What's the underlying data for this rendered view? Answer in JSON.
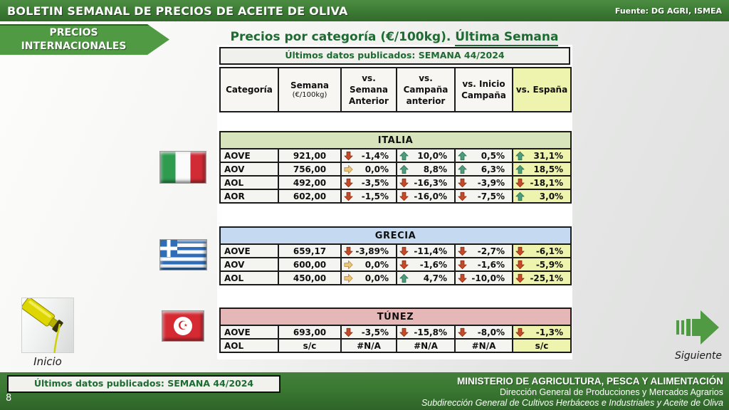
{
  "header": {
    "title": "BOLETIN SEMANAL DE PRECIOS DE ACEITE DE OLIVA",
    "source": "Fuente: DG AGRI, ISMEA"
  },
  "nav": {
    "section_line1": "PRECIOS",
    "section_line2": "INTERNACIONALES",
    "inicio_label": "Inicio",
    "siguiente_label": "Siguiente",
    "page_number": "8"
  },
  "main": {
    "title_plain": "Precios por categoría (€/100kg). ",
    "title_underlined": "Última Semana",
    "published_banner": "Últimos datos publicados: SEMANA 44/2024",
    "columns": {
      "categoria": "Categoría",
      "semana": "Semana",
      "semana_sub": "(€/100kg)",
      "vs_semana": "vs.\nSemana\nAnterior",
      "vs_campana": "vs.\nCampaña\nanterior",
      "vs_inicio": "vs. Inicio\nCampaña",
      "vs_espana": "vs. España"
    }
  },
  "tables": [
    {
      "country": "ITALIA",
      "header_bg": "#d7e4bc",
      "rows": [
        {
          "category": "AOVE",
          "week": "921,00",
          "values": [
            {
              "arrow": "down",
              "text": "-1,4%"
            },
            {
              "arrow": "up",
              "text": "10,0%"
            },
            {
              "arrow": "up",
              "text": "0,5%"
            },
            {
              "arrow": "up",
              "text": "31,1%"
            }
          ]
        },
        {
          "category": "AOV",
          "week": "756,00",
          "values": [
            {
              "arrow": "right",
              "text": "0,0%"
            },
            {
              "arrow": "up",
              "text": "8,8%"
            },
            {
              "arrow": "up",
              "text": "6,3%"
            },
            {
              "arrow": "up",
              "text": "18,5%"
            }
          ]
        },
        {
          "category": "AOL",
          "week": "492,00",
          "values": [
            {
              "arrow": "down",
              "text": "-3,5%"
            },
            {
              "arrow": "down",
              "text": "-16,3%"
            },
            {
              "arrow": "down",
              "text": "-3,9%"
            },
            {
              "arrow": "down",
              "text": "-18,1%"
            }
          ]
        },
        {
          "category": "AOR",
          "week": "602,00",
          "values": [
            {
              "arrow": "down",
              "text": "-1,5%"
            },
            {
              "arrow": "down",
              "text": "-16,0%"
            },
            {
              "arrow": "down",
              "text": "-7,5%"
            },
            {
              "arrow": "up",
              "text": "3,0%"
            }
          ]
        }
      ]
    },
    {
      "country": "GRECIA",
      "header_bg": "#c5d9f1",
      "rows": [
        {
          "category": "AOVE",
          "week": "659,17",
          "values": [
            {
              "arrow": "down",
              "text": "-3,89%"
            },
            {
              "arrow": "down",
              "text": "-11,4%"
            },
            {
              "arrow": "down",
              "text": "-2,7%"
            },
            {
              "arrow": "down",
              "text": "-6,1%"
            }
          ]
        },
        {
          "category": "AOV",
          "week": "600,00",
          "values": [
            {
              "arrow": "right",
              "text": "0,0%"
            },
            {
              "arrow": "down",
              "text": "-1,6%"
            },
            {
              "arrow": "down",
              "text": "-1,6%"
            },
            {
              "arrow": "down",
              "text": "-5,9%"
            }
          ]
        },
        {
          "category": "AOL",
          "week": "450,00",
          "values": [
            {
              "arrow": "right",
              "text": "0,0%"
            },
            {
              "arrow": "up",
              "text": "4,7%"
            },
            {
              "arrow": "down",
              "text": "-10,0%"
            },
            {
              "arrow": "down",
              "text": "-25,1%"
            }
          ]
        }
      ]
    },
    {
      "country": "TÚNEZ",
      "header_bg": "#e5b8b7",
      "rows": [
        {
          "category": "AOVE",
          "week": "693,00",
          "values": [
            {
              "arrow": "down",
              "text": "-3,5%"
            },
            {
              "arrow": "down",
              "text": "-15,8%"
            },
            {
              "arrow": "down",
              "text": "-8,0%"
            },
            {
              "arrow": "down",
              "text": "-1,3%"
            }
          ]
        },
        {
          "category": "AOL",
          "week": "s/c",
          "values": [
            {
              "arrow": null,
              "text": "#N/A"
            },
            {
              "arrow": null,
              "text": "#N/A"
            },
            {
              "arrow": null,
              "text": "#N/A"
            },
            {
              "arrow": null,
              "text": "s/c"
            }
          ]
        }
      ]
    }
  ],
  "footer": {
    "ministry_line1": "MINISTERIO DE AGRICULTURA, PESCA Y ALIMENTACIÓN",
    "ministry_line2": "Dirección General de Producciones y Mercados Agrarios",
    "ministry_line3": "Subdirección General de Cultivos Herbáceos e Industriales y Aceite de Oliva"
  },
  "icons": {
    "star_and_crescent": "☪"
  },
  "colors": {
    "header_green": "#3b7a33",
    "accent_green": "#4f9a43",
    "dark_green_text": "#1d6b31",
    "espana_col": "#eef4ae",
    "cell_bg": "#f4f4f1",
    "arrow_up": "#4d9c7c",
    "arrow_down": "#c44a28",
    "arrow_right": "#eac57c"
  }
}
